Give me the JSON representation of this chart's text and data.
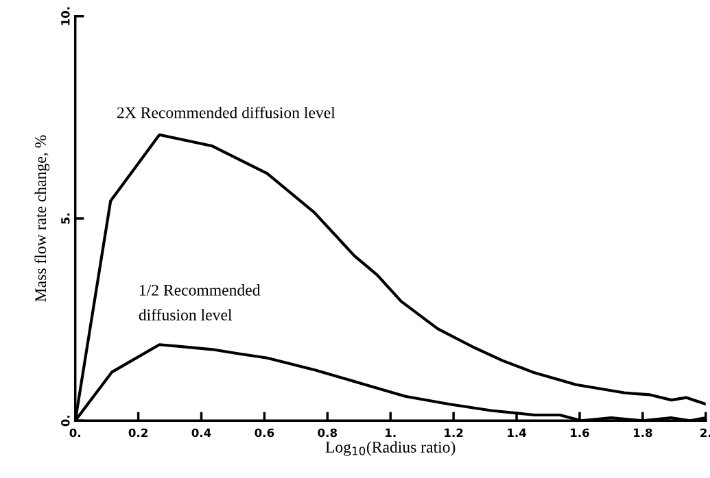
{
  "chart_data": {
    "type": "line",
    "xlabel": "Log$_{10}$(Radius ratio)",
    "ylabel": "Mass flow rate change, %",
    "series": [
      {
        "name": "2X Recommended diffusion level",
        "color": "#000000",
        "x": [
          0,
          0.112,
          0.267,
          0.435,
          0.609,
          0.758,
          0.885,
          0.958,
          1.034,
          1.15,
          1.262,
          1.357,
          1.451,
          1.589,
          1.741,
          1.768,
          1.823,
          1.891,
          1.938,
          2.0
        ],
        "values": [
          0,
          5.43,
          7.07,
          6.79,
          6.11,
          5.15,
          4.08,
          3.6,
          2.95,
          2.27,
          1.82,
          1.48,
          1.2,
          0.89,
          0.69,
          0.67,
          0.64,
          0.51,
          0.57,
          0.41
        ]
      },
      {
        "name": "1/2 Recommended\ndiffusion level",
        "color": "#000000",
        "x": [
          0,
          0.116,
          0.267,
          0.435,
          0.515,
          0.609,
          0.762,
          0.907,
          1.047,
          1.184,
          1.319,
          1.456,
          1.537,
          1.605,
          1.7,
          1.8,
          1.89,
          1.95,
          2.0
        ],
        "values": [
          0,
          1.2,
          1.88,
          1.76,
          1.66,
          1.55,
          1.25,
          0.92,
          0.6,
          0.41,
          0.25,
          0.14,
          0.14,
          0,
          0.07,
          0,
          0.07,
          0,
          0.07
        ]
      }
    ],
    "xlim": [
      0,
      2
    ],
    "ylim": [
      0,
      10
    ],
    "xticks": [
      {
        "value": 0,
        "label": "0."
      },
      0.2,
      0.4,
      0.6,
      0.8,
      {
        "value": 1,
        "label": "1."
      },
      1.2,
      1.4,
      1.6,
      1.8,
      {
        "value": 2,
        "label": "2."
      }
    ],
    "yticks": [
      {
        "value": 0,
        "label": "0."
      },
      {
        "value": 5,
        "label": "5."
      },
      {
        "value": 10,
        "label": "10."
      }
    ],
    "grid": false,
    "legend": false,
    "line_style": "solid",
    "marker": "none"
  }
}
